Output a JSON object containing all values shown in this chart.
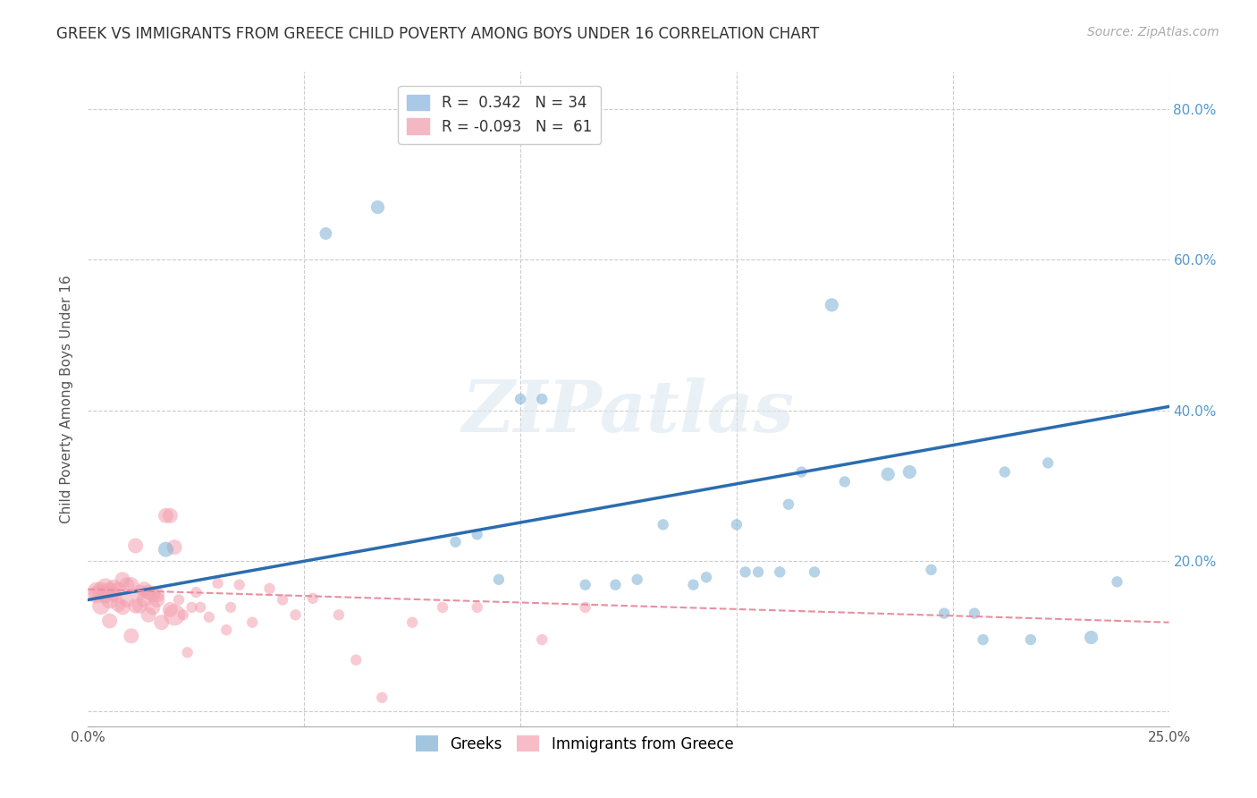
{
  "title": "GREEK VS IMMIGRANTS FROM GREECE CHILD POVERTY AMONG BOYS UNDER 16 CORRELATION CHART",
  "source": "Source: ZipAtlas.com",
  "ylabel": "Child Poverty Among Boys Under 16",
  "xlim": [
    0.0,
    0.25
  ],
  "ylim": [
    -0.02,
    0.85
  ],
  "greek_R": 0.342,
  "greek_N": 34,
  "immigrant_R": -0.093,
  "immigrant_N": 61,
  "greek_color": "#7bafd4",
  "immigrant_color": "#f4a0b0",
  "greek_line_color": "#2b6cb0",
  "immigrant_line_color": "#e88fa0",
  "background_color": "#ffffff",
  "grid_color": "#cccccc",
  "greek_scatter_x": [
    0.018,
    0.055,
    0.067,
    0.085,
    0.09,
    0.095,
    0.1,
    0.105,
    0.115,
    0.122,
    0.127,
    0.133,
    0.14,
    0.143,
    0.15,
    0.152,
    0.155,
    0.16,
    0.162,
    0.165,
    0.168,
    0.172,
    0.175,
    0.185,
    0.19,
    0.195,
    0.198,
    0.205,
    0.207,
    0.212,
    0.218,
    0.222,
    0.232,
    0.238
  ],
  "greek_scatter_y": [
    0.215,
    0.635,
    0.67,
    0.225,
    0.235,
    0.175,
    0.415,
    0.415,
    0.168,
    0.168,
    0.175,
    0.248,
    0.168,
    0.178,
    0.248,
    0.185,
    0.185,
    0.185,
    0.275,
    0.318,
    0.185,
    0.54,
    0.305,
    0.315,
    0.318,
    0.188,
    0.13,
    0.13,
    0.095,
    0.318,
    0.095,
    0.33,
    0.098,
    0.172
  ],
  "greek_scatter_size": [
    150,
    100,
    120,
    80,
    80,
    80,
    80,
    80,
    80,
    80,
    80,
    80,
    80,
    80,
    80,
    80,
    80,
    80,
    80,
    80,
    80,
    120,
    80,
    120,
    120,
    80,
    80,
    80,
    80,
    80,
    80,
    80,
    120,
    80
  ],
  "immigrant_scatter_x": [
    0.002,
    0.002,
    0.003,
    0.003,
    0.004,
    0.004,
    0.005,
    0.005,
    0.005,
    0.006,
    0.006,
    0.007,
    0.007,
    0.008,
    0.008,
    0.009,
    0.009,
    0.01,
    0.01,
    0.011,
    0.011,
    0.012,
    0.012,
    0.013,
    0.013,
    0.014,
    0.014,
    0.015,
    0.015,
    0.016,
    0.016,
    0.017,
    0.018,
    0.019,
    0.019,
    0.02,
    0.02,
    0.021,
    0.022,
    0.023,
    0.024,
    0.025,
    0.026,
    0.028,
    0.03,
    0.032,
    0.033,
    0.035,
    0.038,
    0.042,
    0.045,
    0.048,
    0.052,
    0.058,
    0.062,
    0.068,
    0.075,
    0.082,
    0.09,
    0.105,
    0.115
  ],
  "immigrant_scatter_y": [
    0.155,
    0.16,
    0.14,
    0.16,
    0.155,
    0.165,
    0.12,
    0.148,
    0.16,
    0.155,
    0.165,
    0.142,
    0.162,
    0.138,
    0.175,
    0.148,
    0.168,
    0.1,
    0.168,
    0.22,
    0.14,
    0.14,
    0.158,
    0.148,
    0.162,
    0.128,
    0.158,
    0.138,
    0.155,
    0.148,
    0.155,
    0.118,
    0.26,
    0.26,
    0.135,
    0.218,
    0.128,
    0.148,
    0.128,
    0.078,
    0.138,
    0.158,
    0.138,
    0.125,
    0.17,
    0.108,
    0.138,
    0.168,
    0.118,
    0.163,
    0.148,
    0.128,
    0.15,
    0.128,
    0.068,
    0.018,
    0.118,
    0.138,
    0.138,
    0.095,
    0.138
  ],
  "immigrant_scatter_size": [
    200,
    200,
    200,
    200,
    200,
    200,
    150,
    200,
    200,
    150,
    150,
    150,
    150,
    150,
    150,
    150,
    150,
    150,
    150,
    150,
    150,
    150,
    150,
    150,
    150,
    150,
    150,
    150,
    150,
    150,
    150,
    150,
    150,
    150,
    150,
    150,
    300,
    80,
    80,
    80,
    80,
    80,
    80,
    80,
    80,
    80,
    80,
    80,
    80,
    80,
    80,
    80,
    80,
    80,
    80,
    80,
    80,
    80,
    80,
    80,
    80
  ]
}
